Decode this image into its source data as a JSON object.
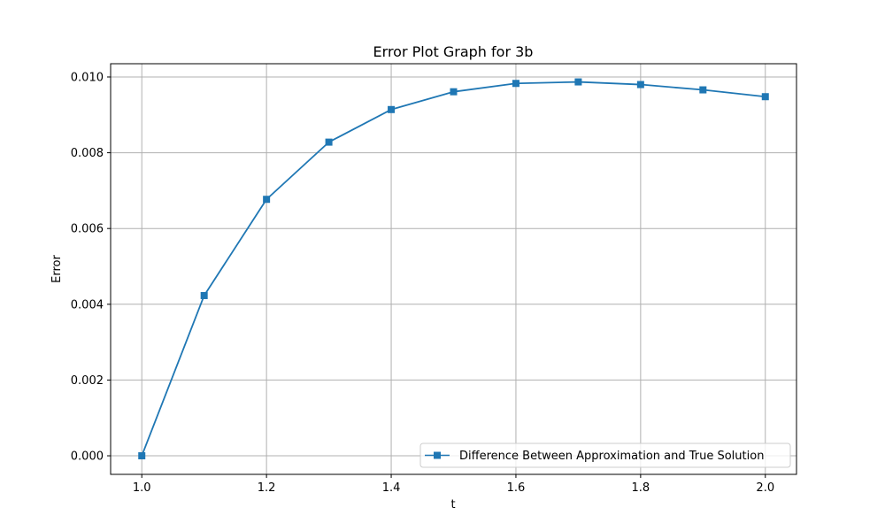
{
  "chart_data": {
    "type": "line",
    "title": "Error Plot Graph for 3b",
    "xlabel": "t",
    "ylabel": "Error",
    "xlim": [
      0.95,
      2.05
    ],
    "ylim": [
      -0.00049,
      0.01035
    ],
    "xticks": [
      "1.0",
      "1.2",
      "1.4",
      "1.6",
      "1.8",
      "2.0"
    ],
    "xtick_values": [
      1.0,
      1.2,
      1.4,
      1.6,
      1.8,
      2.0
    ],
    "yticks": [
      "0.000",
      "0.002",
      "0.004",
      "0.006",
      "0.008",
      "0.010"
    ],
    "ytick_values": [
      0.0,
      0.002,
      0.004,
      0.006,
      0.008,
      0.01
    ],
    "grid": true,
    "legend": "lower-right",
    "series": [
      {
        "name": "Difference Between Approximation and True Solution",
        "color": "#1f77b4",
        "marker": "square",
        "x": [
          1.0,
          1.1,
          1.2,
          1.3,
          1.4,
          1.5,
          1.6,
          1.7,
          1.8,
          1.9,
          2.0
        ],
        "y": [
          0.0,
          0.00423,
          0.00677,
          0.00828,
          0.00914,
          0.00961,
          0.00983,
          0.00987,
          0.0098,
          0.00966,
          0.00948
        ]
      }
    ]
  }
}
